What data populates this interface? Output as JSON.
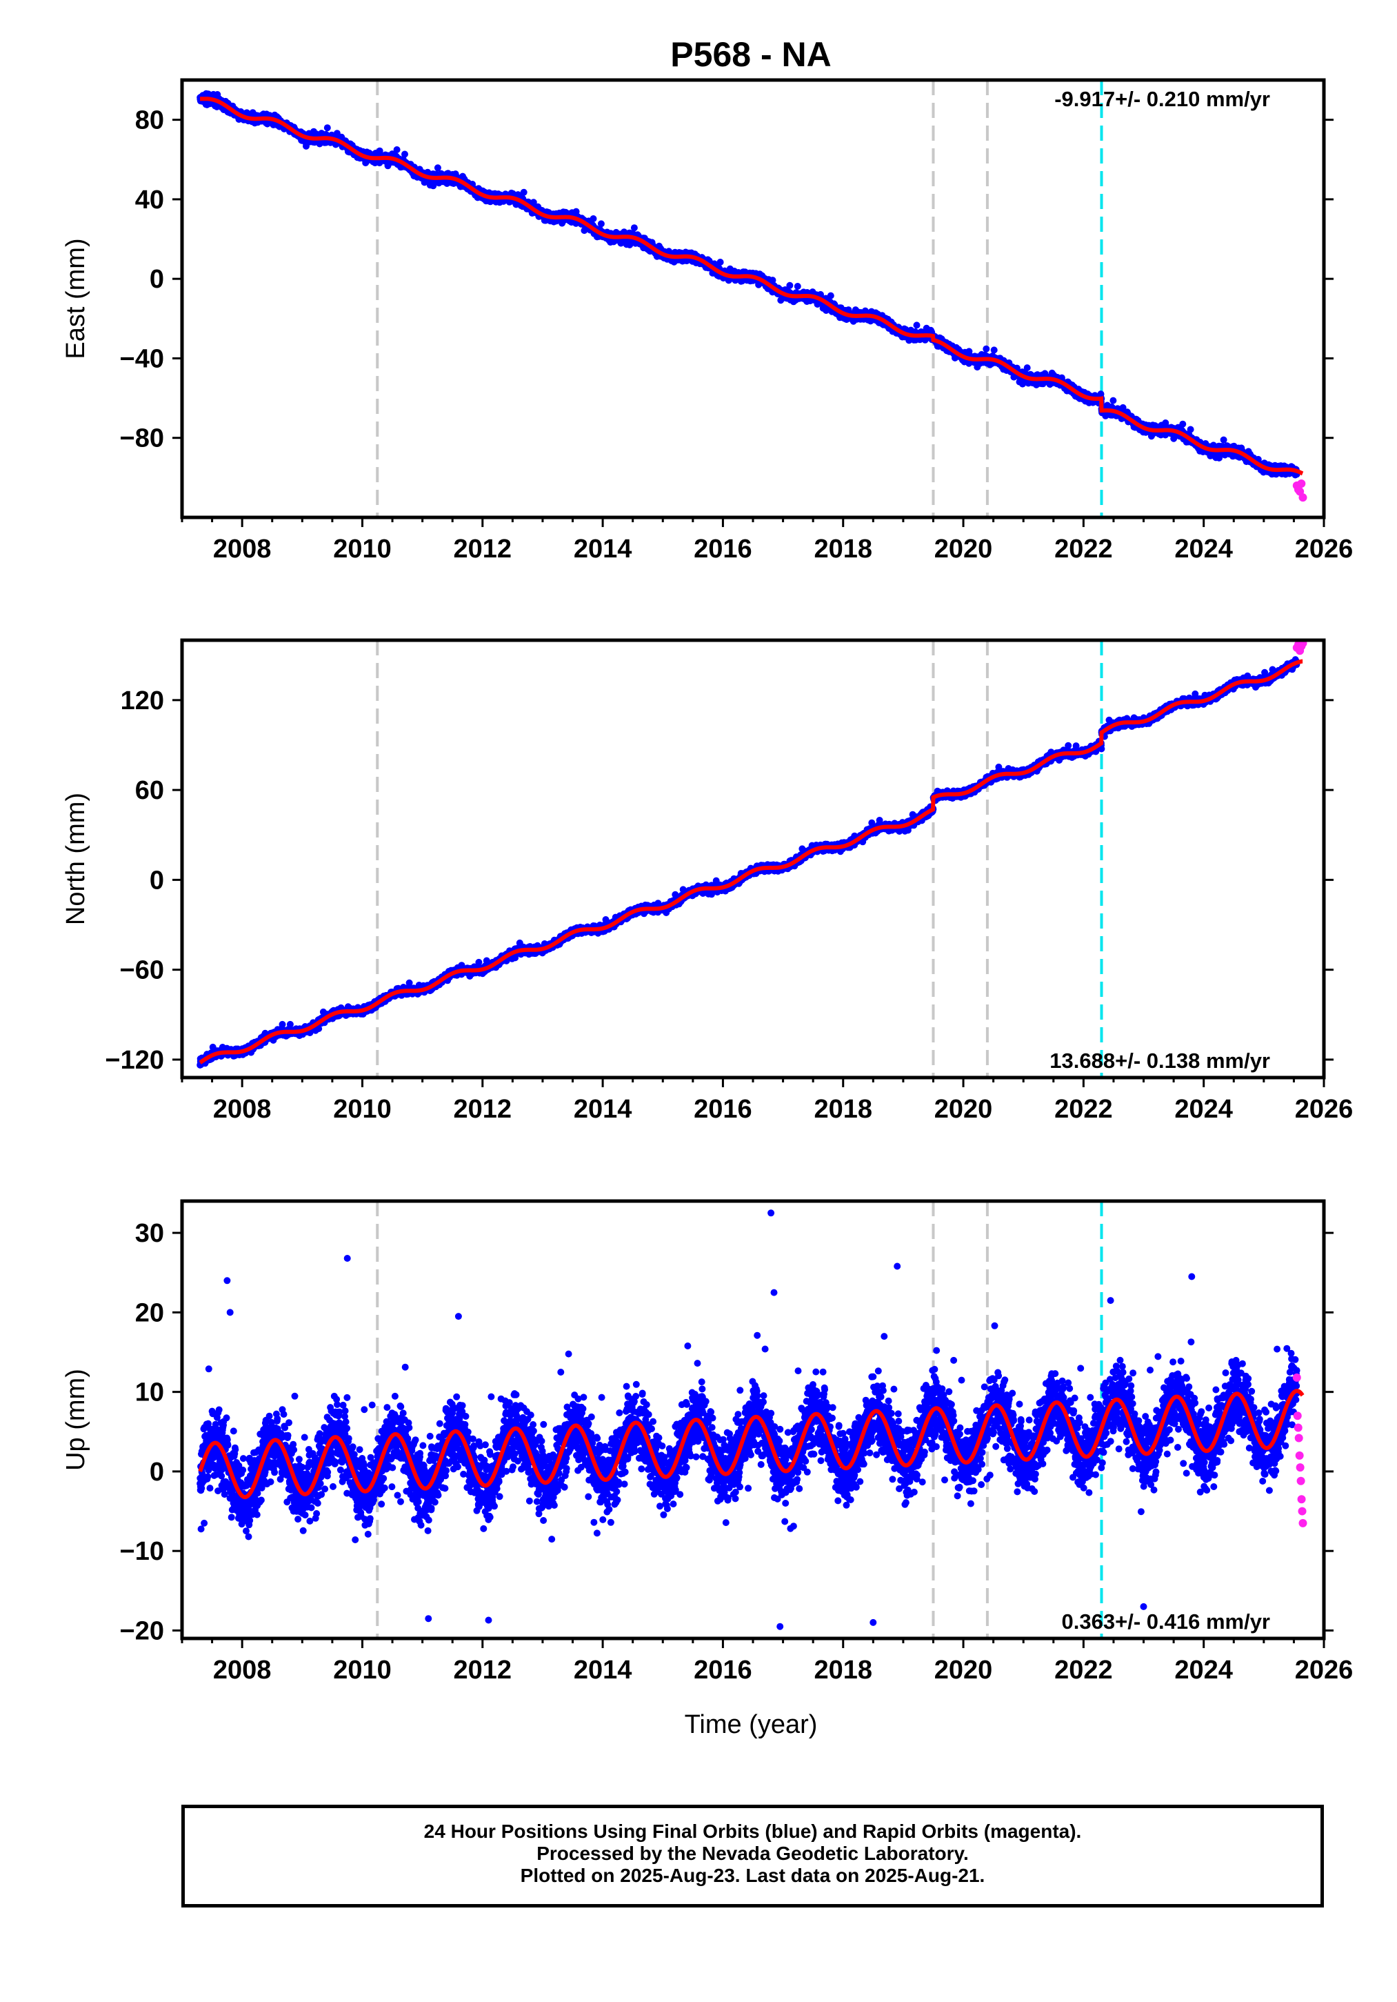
{
  "title": "P568 - NA",
  "caption": {
    "line1": "24 Hour Positions Using Final Orbits (blue) and Rapid Orbits (magenta).",
    "line2": "Processed by the Nevada Geodetic Laboratory.",
    "line3": "Plotted on 2025-Aug-23. Last data on 2025-Aug-21."
  },
  "colors": {
    "final_points": "#0000ff",
    "rapid_points": "#ff22ee",
    "model": "#ff0000",
    "equipment_change": "#c8c8c8",
    "earthquake": "#00e5ee"
  },
  "chart_data": [
    {
      "type": "scatter",
      "ylabel": "East (mm)",
      "xlabel": "",
      "xlim": [
        2007.0,
        2026.0
      ],
      "ylim": [
        -120,
        100
      ],
      "xticks": [
        2008,
        2010,
        2012,
        2014,
        2016,
        2018,
        2020,
        2022,
        2024,
        2026
      ],
      "yticks": [
        80,
        40,
        0,
        -40,
        -80
      ],
      "ytick_labels": [
        "80",
        "40",
        "0",
        "−40",
        "−80"
      ],
      "rate_label": "-9.917+/- 0.210 mm/yr",
      "rate_position": "top-right",
      "equipment_change_epochs": [
        2010.25,
        2019.5,
        2020.4
      ],
      "earthquake_epochs": [
        2022.3
      ],
      "model": {
        "start": 2007.3,
        "end": 2025.65,
        "start_value": 90.5,
        "rate": -9.917,
        "annual_amplitude": 1.8,
        "offsets": [
          {
            "epoch": 2019.5,
            "value": -2.0
          },
          {
            "epoch": 2022.3,
            "value": -6.0
          }
        ]
      },
      "final_orbits": {
        "start": 2007.3,
        "end": 2025.55,
        "scatter": 2.0
      },
      "rapid_orbits": {
        "start": 2025.55,
        "end": 2025.65,
        "values": [
          -104,
          -106,
          -107,
          -103,
          -110
        ]
      }
    },
    {
      "type": "scatter",
      "ylabel": "North (mm)",
      "xlabel": "",
      "xlim": [
        2007.0,
        2026.0
      ],
      "ylim": [
        -132,
        160
      ],
      "xticks": [
        2008,
        2010,
        2012,
        2014,
        2016,
        2018,
        2020,
        2022,
        2024,
        2026
      ],
      "yticks": [
        120,
        60,
        0,
        -60,
        -120
      ],
      "ytick_labels": [
        "120",
        "60",
        "0",
        "−60",
        "−120"
      ],
      "rate_label": "13.688+/- 0.138 mm/yr",
      "rate_position": "bottom-right",
      "equipment_change_epochs": [
        2010.25,
        2019.5,
        2020.4
      ],
      "earthquake_epochs": [
        2022.3
      ],
      "model": {
        "start": 2007.3,
        "end": 2025.65,
        "start_value": -122.0,
        "rate": 13.688,
        "annual_amplitude": 2.2,
        "offsets": [
          {
            "epoch": 2019.5,
            "value": 8.0
          },
          {
            "epoch": 2022.3,
            "value": 7.0
          }
        ]
      },
      "final_orbits": {
        "start": 2007.3,
        "end": 2025.55,
        "scatter": 2.0
      },
      "rapid_orbits": {
        "start": 2025.55,
        "end": 2025.65,
        "values": [
          155,
          157,
          153,
          156,
          158
        ]
      }
    },
    {
      "type": "scatter",
      "ylabel": "Up (mm)",
      "xlabel": "Time (year)",
      "xlim": [
        2007.0,
        2026.0
      ],
      "ylim": [
        -21,
        34
      ],
      "xticks": [
        2008,
        2010,
        2012,
        2014,
        2016,
        2018,
        2020,
        2022,
        2024,
        2026
      ],
      "yticks": [
        30,
        20,
        10,
        0,
        -10,
        -20
      ],
      "ytick_labels": [
        "30",
        "20",
        "10",
        "0",
        "−10",
        "−20"
      ],
      "rate_label": "0.363+/- 0.416 mm/yr",
      "rate_position": "bottom-right",
      "equipment_change_epochs": [
        2010.25,
        2019.5,
        2020.4
      ],
      "earthquake_epochs": [
        2022.3
      ],
      "model": {
        "start": 2007.3,
        "end": 2025.65,
        "start_value": 0.0,
        "rate": 0.363,
        "annual_amplitude": 3.5,
        "offsets": []
      },
      "final_orbits": {
        "start": 2007.3,
        "end": 2025.55,
        "scatter": 4.0
      },
      "rapid_orbits": {
        "start": 2025.55,
        "end": 2025.65,
        "values": [
          11.8,
          7.0,
          5.5,
          4.2,
          2.0,
          0.5,
          -1.2,
          -3.5,
          -5.0,
          -6.5
        ]
      },
      "outliers": [
        {
          "x": 2016.8,
          "y": 32.5
        },
        {
          "x": 2009.75,
          "y": 26.8
        },
        {
          "x": 2007.75,
          "y": 24.0
        },
        {
          "x": 2018.9,
          "y": 25.8
        },
        {
          "x": 2023.8,
          "y": 24.5
        },
        {
          "x": 2016.85,
          "y": 22.5
        },
        {
          "x": 2022.45,
          "y": 21.5
        },
        {
          "x": 2007.8,
          "y": 20.0
        },
        {
          "x": 2011.6,
          "y": 19.5
        },
        {
          "x": 2012.1,
          "y": -18.7
        },
        {
          "x": 2016.95,
          "y": -19.5
        },
        {
          "x": 2011.1,
          "y": -18.5
        },
        {
          "x": 2018.5,
          "y": -19.0
        },
        {
          "x": 2023.0,
          "y": -17.0
        }
      ]
    }
  ]
}
